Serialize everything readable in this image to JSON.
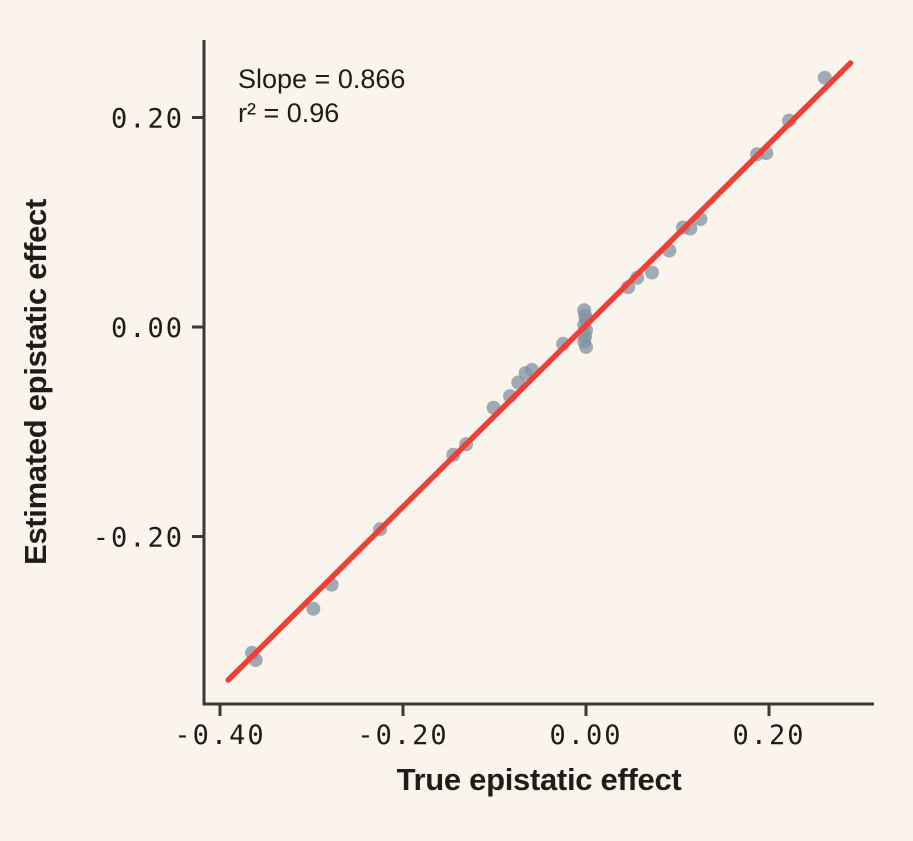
{
  "figure": {
    "background_color": "#faf4ec",
    "text_color": "#1e1d1a",
    "annotation": {
      "line1": "Slope = 0.866",
      "line2": "r² = 0.96"
    }
  },
  "chart_data": {
    "type": "scatter",
    "title": "",
    "xlabel": "True epistatic effect",
    "ylabel": "Estimated epistatic effect",
    "annotations": [
      "Slope = 0.866",
      "r² = 0.96"
    ],
    "xlim": [
      -0.42,
      0.315
    ],
    "ylim": [
      -0.355,
      0.274
    ],
    "x_ticks": [
      -0.4,
      -0.2,
      0.0,
      0.2
    ],
    "y_ticks": [
      -0.2,
      0.0,
      0.2
    ],
    "x_tick_labels": [
      "-0.40",
      "-0.20",
      "0.00",
      "0.20"
    ],
    "y_tick_labels": [
      "-0.20",
      "0.00",
      "0.20"
    ],
    "grid": false,
    "legend": null,
    "axis_color": "#3b3936",
    "point_color": "#8292a3",
    "point_opacity": 0.75,
    "point_radius": 7,
    "line_color": "#ee4036",
    "fit_line": {
      "slope": 0.866,
      "r_squared": 0.96,
      "x1": -0.391,
      "y1": -0.337,
      "x2": 0.289,
      "y2": 0.252
    },
    "points": [
      {
        "x": -0.365,
        "y": -0.311
      },
      {
        "x": -0.361,
        "y": -0.318
      },
      {
        "x": -0.298,
        "y": -0.269
      },
      {
        "x": -0.278,
        "y": -0.246
      },
      {
        "x": -0.225,
        "y": -0.193
      },
      {
        "x": -0.145,
        "y": -0.122
      },
      {
        "x": -0.131,
        "y": -0.112
      },
      {
        "x": -0.101,
        "y": -0.077
      },
      {
        "x": -0.083,
        "y": -0.066
      },
      {
        "x": -0.074,
        "y": -0.053
      },
      {
        "x": -0.066,
        "y": -0.044
      },
      {
        "x": -0.059,
        "y": -0.041
      },
      {
        "x": -0.025,
        "y": -0.016
      },
      {
        "x": -0.002,
        "y": 0.016
      },
      {
        "x": -0.001,
        "y": 0.011
      },
      {
        "x": 0.0,
        "y": 0.007
      },
      {
        "x": -0.002,
        "y": 0.002
      },
      {
        "x": 0.0,
        "y": -0.003
      },
      {
        "x": -0.001,
        "y": -0.009
      },
      {
        "x": -0.002,
        "y": -0.014
      },
      {
        "x": 0.0,
        "y": -0.019
      },
      {
        "x": 0.046,
        "y": 0.038
      },
      {
        "x": 0.056,
        "y": 0.047
      },
      {
        "x": 0.072,
        "y": 0.052
      },
      {
        "x": 0.091,
        "y": 0.073
      },
      {
        "x": 0.106,
        "y": 0.095
      },
      {
        "x": 0.114,
        "y": 0.094
      },
      {
        "x": 0.125,
        "y": 0.103
      },
      {
        "x": 0.187,
        "y": 0.165
      },
      {
        "x": 0.197,
        "y": 0.166
      },
      {
        "x": 0.222,
        "y": 0.197
      },
      {
        "x": 0.261,
        "y": 0.238
      }
    ]
  }
}
